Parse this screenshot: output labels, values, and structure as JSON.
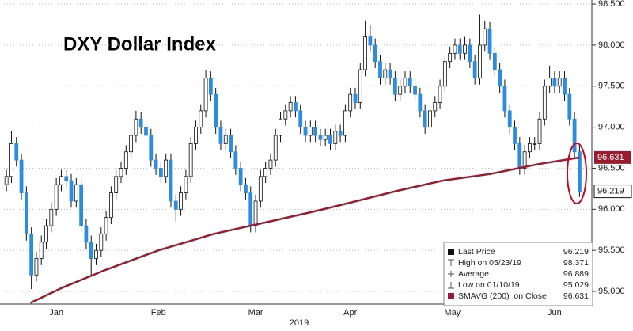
{
  "chart_data": {
    "type": "candlestick",
    "title": "DXY Dollar Index",
    "xlabel": "2019",
    "up_color": "#ffffff",
    "down_color": "#2b8de0",
    "sma_color": "#9b1c31",
    "grid": true,
    "xlim": [
      -0.5,
      117
    ],
    "xticks": [
      {
        "value": 10,
        "label": "Jan"
      },
      {
        "value": 30.5,
        "label": "Feb"
      },
      {
        "value": 50,
        "label": "Mar"
      },
      {
        "value": 69,
        "label": "Apr"
      },
      {
        "value": 89.5,
        "label": "May"
      },
      {
        "value": 110,
        "label": "Jun"
      }
    ],
    "ylim": [
      94.846,
      98.549
    ],
    "yticks": [
      {
        "value": 95,
        "label": "95.000"
      },
      {
        "value": 95.5,
        "label": "95.500"
      },
      {
        "value": 96,
        "label": "96.000"
      },
      {
        "value": 96.5,
        "label": "96.500"
      },
      {
        "value": 97,
        "label": "97.000"
      },
      {
        "value": 97.5,
        "label": "97.500"
      },
      {
        "value": 98,
        "label": "98.000"
      },
      {
        "value": 98.5,
        "label": "98.500"
      }
    ],
    "open": [
      96.3,
      96.4,
      96.8,
      96.6,
      96.2,
      95.7,
      95.2,
      95.4,
      95.6,
      95.8,
      96.0,
      96.3,
      96.4,
      96.35,
      96.1,
      96.3,
      95.8,
      95.6,
      95.4,
      95.5,
      95.7,
      95.9,
      96.2,
      96.4,
      96.5,
      96.7,
      96.9,
      97.1,
      97.0,
      96.9,
      96.6,
      96.5,
      96.4,
      96.6,
      96.1,
      96.0,
      96.2,
      96.4,
      96.8,
      97.0,
      97.2,
      97.6,
      97.4,
      97.0,
      96.8,
      96.9,
      96.7,
      96.5,
      96.3,
      96.2,
      95.8,
      96.1,
      96.4,
      96.5,
      96.6,
      96.9,
      97.1,
      97.2,
      97.3,
      97.2,
      97.0,
      96.9,
      97.0,
      96.9,
      96.85,
      96.9,
      96.8,
      96.95,
      96.9,
      97.2,
      97.4,
      97.3,
      97.7,
      98.1,
      98.0,
      97.8,
      97.6,
      97.7,
      97.6,
      97.4,
      97.5,
      97.6,
      97.5,
      97.4,
      97.2,
      97.0,
      97.2,
      97.3,
      97.5,
      97.8,
      97.9,
      98.0,
      97.9,
      98.0,
      97.8,
      97.6,
      98.0,
      98.2,
      97.9,
      97.7,
      97.5,
      97.2,
      97.0,
      96.8,
      96.5,
      96.7,
      96.8,
      96.8,
      97.1,
      97.5,
      97.6,
      97.5,
      97.6,
      97.4,
      97.1,
      96.7
    ],
    "high": [
      96.48,
      96.95,
      96.88,
      96.68,
      96.28,
      95.78,
      95.48,
      95.68,
      95.88,
      96.08,
      96.38,
      96.48,
      96.48,
      96.43,
      96.38,
      96.38,
      95.88,
      95.68,
      95.58,
      95.78,
      95.98,
      96.28,
      96.48,
      96.58,
      96.78,
      96.98,
      97.2,
      97.18,
      97.08,
      96.98,
      96.68,
      96.58,
      96.68,
      96.68,
      96.18,
      96.28,
      96.48,
      96.88,
      97.08,
      97.28,
      97.7,
      97.68,
      97.48,
      97.08,
      96.98,
      96.98,
      96.78,
      96.58,
      96.38,
      96.28,
      96.18,
      96.48,
      96.58,
      96.68,
      96.98,
      97.18,
      97.28,
      97.38,
      97.38,
      97.28,
      97.08,
      97.08,
      97.08,
      96.98,
      96.98,
      96.98,
      97.03,
      97.03,
      97.28,
      97.48,
      97.48,
      97.78,
      98.3,
      98.25,
      98.08,
      97.88,
      97.78,
      97.78,
      97.68,
      97.58,
      97.68,
      97.68,
      97.58,
      97.48,
      97.28,
      97.28,
      97.38,
      97.58,
      97.88,
      97.98,
      98.08,
      98.08,
      98.1,
      98.08,
      97.88,
      98.371,
      98.3,
      98.28,
      97.98,
      97.78,
      97.58,
      97.28,
      97.08,
      96.88,
      96.78,
      96.88,
      96.88,
      97.18,
      97.58,
      97.75,
      97.68,
      97.68,
      97.68,
      97.48,
      97.18,
      96.78
    ],
    "low": [
      96.22,
      96.32,
      96.52,
      96.12,
      95.62,
      95.029,
      95.12,
      95.32,
      95.52,
      95.72,
      95.92,
      96.22,
      96.27,
      96.02,
      96.02,
      95.72,
      95.52,
      95.2,
      95.32,
      95.42,
      95.62,
      95.82,
      96.12,
      96.32,
      96.42,
      96.62,
      96.82,
      96.92,
      96.82,
      96.52,
      96.42,
      96.32,
      96.32,
      96.02,
      95.85,
      95.92,
      96.12,
      96.32,
      96.72,
      96.92,
      97.12,
      97.32,
      96.92,
      96.72,
      96.72,
      96.62,
      96.42,
      96.22,
      96.12,
      95.72,
      95.72,
      96.02,
      96.32,
      96.42,
      96.52,
      96.82,
      97.02,
      97.12,
      97.12,
      96.92,
      96.82,
      96.82,
      96.82,
      96.77,
      96.77,
      96.72,
      96.72,
      96.82,
      96.82,
      97.12,
      97.22,
      97.22,
      97.62,
      97.92,
      97.72,
      97.52,
      97.52,
      97.52,
      97.32,
      97.32,
      97.42,
      97.42,
      97.32,
      97.12,
      96.92,
      96.92,
      97.12,
      97.22,
      97.42,
      97.72,
      97.82,
      97.82,
      97.82,
      97.72,
      97.52,
      97.52,
      97.92,
      97.82,
      97.62,
      97.42,
      97.12,
      96.92,
      96.72,
      96.42,
      96.42,
      96.62,
      96.72,
      96.72,
      97.02,
      97.42,
      97.42,
      97.42,
      97.32,
      97.02,
      96.62,
      96.15
    ],
    "close": [
      96.4,
      96.8,
      96.6,
      96.2,
      95.7,
      95.2,
      95.4,
      95.6,
      95.8,
      96.0,
      96.3,
      96.4,
      96.35,
      96.1,
      96.3,
      95.8,
      95.6,
      95.4,
      95.5,
      95.7,
      95.9,
      96.2,
      96.4,
      96.5,
      96.7,
      96.9,
      97.1,
      97.0,
      96.9,
      96.6,
      96.5,
      96.4,
      96.6,
      96.1,
      96.0,
      96.2,
      96.4,
      96.8,
      97.0,
      97.2,
      97.6,
      97.4,
      97.0,
      96.8,
      96.9,
      96.7,
      96.5,
      96.3,
      96.2,
      95.8,
      96.1,
      96.4,
      96.5,
      96.6,
      96.9,
      97.1,
      97.2,
      97.3,
      97.2,
      97.0,
      96.9,
      97.0,
      96.9,
      96.85,
      96.9,
      96.8,
      96.95,
      96.9,
      97.2,
      97.4,
      97.3,
      97.7,
      98.1,
      98.0,
      97.8,
      97.6,
      97.7,
      97.6,
      97.4,
      97.5,
      97.6,
      97.5,
      97.4,
      97.2,
      97.0,
      97.2,
      97.3,
      97.5,
      97.8,
      97.9,
      98.0,
      97.9,
      98.0,
      97.8,
      97.6,
      98.0,
      98.2,
      97.9,
      97.7,
      97.5,
      97.2,
      97.0,
      96.8,
      96.5,
      96.7,
      96.8,
      96.8,
      97.1,
      97.5,
      97.6,
      97.5,
      97.6,
      97.4,
      97.1,
      96.7,
      96.219
    ],
    "sma": {
      "x": [
        4.8,
        11.4,
        19.4,
        30.5,
        41.6,
        52.7,
        62.2,
        70.2,
        78.1,
        87.6,
        97.1,
        106.7,
        115
      ],
      "values": [
        94.86,
        95.05,
        95.25,
        95.5,
        95.7,
        95.85,
        95.98,
        96.1,
        96.22,
        96.35,
        96.43,
        96.55,
        96.631
      ]
    },
    "legend": [
      {
        "label": "Last Price",
        "value": 96.219
      },
      {
        "label": "High on 05/23/19",
        "value": 98.371
      },
      {
        "label": "Average",
        "value": 96.889
      },
      {
        "label": "Low on 01/10/19",
        "value": 95.029
      },
      {
        "label": "SMAVG (200)  on Close",
        "value": 96.631
      }
    ]
  }
}
